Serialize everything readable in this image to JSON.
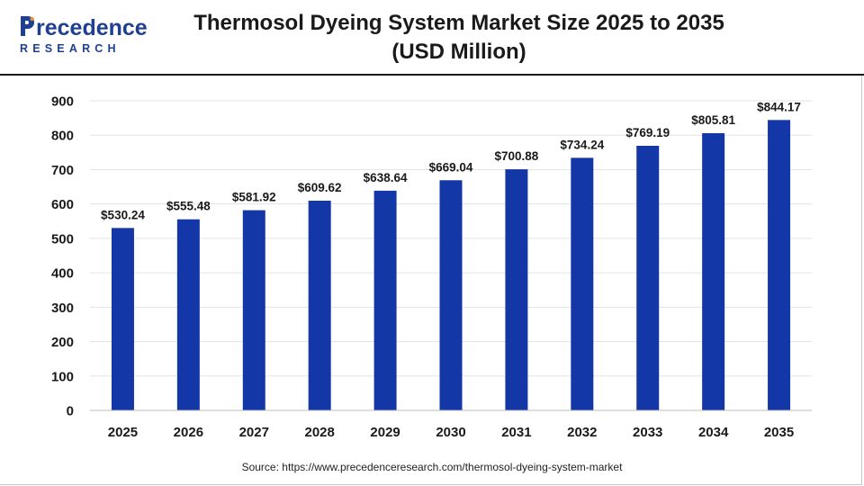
{
  "header": {
    "logo_top": "recedence",
    "logo_bottom": "RESEARCH",
    "title_line1": "Thermosol Dyeing System Market Size 2025 to 2035",
    "title_line2": "(USD Million)"
  },
  "footer": {
    "source": "Source: https://www.precedenceresearch.com/thermosol-dyeing-system-market"
  },
  "colors": {
    "bar": "#1437a8",
    "brand": "#1f3f93",
    "text": "#1a1a1a",
    "grid": "#e3e3e3"
  },
  "chart_data": {
    "type": "bar",
    "title": "Thermosol Dyeing System Market Size 2025 to 2035 (USD Million)",
    "categories": [
      "2025",
      "2026",
      "2027",
      "2028",
      "2029",
      "2030",
      "2031",
      "2032",
      "2033",
      "2034",
      "2035"
    ],
    "values": [
      530.24,
      555.48,
      581.92,
      609.62,
      638.64,
      669.04,
      700.88,
      734.24,
      769.19,
      805.81,
      844.17
    ],
    "value_labels": [
      "$530.24",
      "$555.48",
      "$581.92",
      "$609.62",
      "$638.64",
      "$669.04",
      "$700.88",
      "$734.24",
      "$769.19",
      "$805.81",
      "$844.17"
    ],
    "y_ticks": [
      0,
      100,
      200,
      300,
      400,
      500,
      600,
      700,
      800,
      900
    ],
    "ylim": [
      0,
      900
    ],
    "xlabel": "",
    "ylabel": "",
    "grid": true,
    "legend": "none"
  }
}
